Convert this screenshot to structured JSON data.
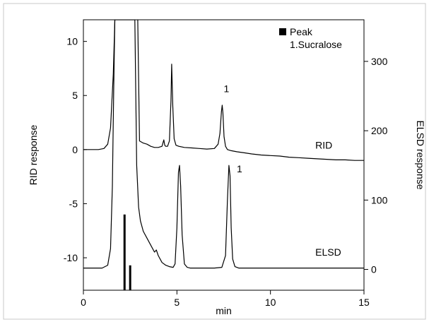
{
  "chart_data": {
    "type": "line",
    "xlabel": "min",
    "ylabel_left": "RID response",
    "ylabel_right": "ELSD response",
    "xlim": [
      0,
      15
    ],
    "ylim_left": [
      -13,
      12
    ],
    "ylim_right": [
      -30,
      360
    ],
    "xticks": [
      0,
      5,
      10,
      15
    ],
    "yticks_left": [
      10,
      5,
      0,
      -5,
      -10
    ],
    "yticks_right": [
      300,
      200,
      100,
      0
    ],
    "grid": false,
    "legend": {
      "marker": "square",
      "title": "Peak",
      "entries": [
        "1.Sucralose"
      ],
      "placement": "top-right"
    },
    "series": [
      {
        "name": "RID",
        "axis": "left",
        "x": [
          0,
          0.8,
          1.1,
          1.3,
          1.45,
          1.6,
          1.68,
          1.76,
          1.85,
          1.95,
          2.05,
          2.1,
          2.15,
          2.22,
          2.28,
          2.35,
          2.42,
          2.5,
          2.58,
          2.63,
          2.66,
          2.68,
          2.72,
          2.76,
          2.82,
          2.9,
          3.0,
          3.2,
          3.4,
          3.6,
          3.8,
          4.0,
          4.2,
          4.3,
          4.35,
          4.4,
          4.5,
          4.6,
          4.68,
          4.72,
          4.78,
          4.85,
          4.95,
          5.1,
          5.4,
          5.8,
          6.2,
          6.6,
          7.0,
          7.2,
          7.3,
          7.38,
          7.42,
          7.46,
          7.52,
          7.6,
          7.7,
          7.9,
          8.2,
          8.6,
          9.0,
          9.5,
          10.0,
          10.5,
          11.0,
          11.5,
          12.0,
          12.5,
          13.0,
          13.5,
          14.0,
          14.5,
          15.0
        ],
        "y": [
          0,
          0,
          0.1,
          0.5,
          2.0,
          7.0,
          12.0,
          12.5,
          12.5,
          12.5,
          12.5,
          12.5,
          12.5,
          12.5,
          12.5,
          12.5,
          12.5,
          12.5,
          12.5,
          12.5,
          12.5,
          12.5,
          12.5,
          12.5,
          12.5,
          12.5,
          0.8,
          0.6,
          0.5,
          0.3,
          0.2,
          0.2,
          0.3,
          0.9,
          0.4,
          0.3,
          0.3,
          0.8,
          4.5,
          7.9,
          4.0,
          1.0,
          0.4,
          0.3,
          0.2,
          0.15,
          0.1,
          0.05,
          0.1,
          0.5,
          1.5,
          3.5,
          4.1,
          3.4,
          1.2,
          0.3,
          0.0,
          -0.1,
          -0.2,
          -0.3,
          -0.4,
          -0.5,
          -0.55,
          -0.6,
          -0.7,
          -0.75,
          -0.8,
          -0.85,
          -0.9,
          -0.95,
          -0.95,
          -1.0,
          -1.0
        ]
      },
      {
        "name": "ELSD",
        "axis": "right",
        "x": [
          0,
          1.0,
          1.3,
          1.45,
          1.55,
          1.62,
          1.68,
          1.75,
          1.85,
          2.0,
          2.2,
          2.4,
          2.6,
          2.75,
          2.85,
          2.95,
          3.05,
          3.2,
          3.4,
          3.6,
          3.8,
          3.9,
          4.0,
          4.2,
          4.4,
          4.6,
          4.8,
          4.9,
          5.0,
          5.08,
          5.14,
          5.2,
          5.28,
          5.4,
          5.55,
          5.7,
          6.0,
          6.5,
          7.0,
          7.4,
          7.6,
          7.7,
          7.78,
          7.84,
          7.9,
          7.98,
          8.1,
          8.3,
          8.5,
          9.0,
          10.0,
          11.0,
          12.0,
          13.0,
          14.0,
          15.0
        ],
        "y": [
          2,
          2,
          6,
          30,
          120,
          260,
          360,
          360,
          360,
          360,
          360,
          360,
          360,
          360,
          150,
          90,
          70,
          55,
          45,
          35,
          25,
          28,
          20,
          10,
          6,
          4,
          3,
          8,
          60,
          140,
          150,
          120,
          50,
          8,
          3,
          2,
          2,
          2,
          2,
          3,
          20,
          100,
          150,
          135,
          60,
          15,
          4,
          2,
          2,
          2,
          2,
          2,
          2,
          2,
          2,
          2
        ]
      }
    ],
    "annotations": [
      {
        "text": "1",
        "series": "RID",
        "x": 7.5,
        "y": 5.3
      },
      {
        "text": "1",
        "series": "ELSD",
        "x": 8.2,
        "y": 140
      },
      {
        "text": "RID",
        "x": 12.4,
        "y": 0.1
      },
      {
        "text": "ELSD",
        "x": 12.4,
        "y": 20
      }
    ],
    "peak_markers": [
      {
        "x": 2.2,
        "y": -6
      },
      {
        "x": 2.5,
        "y": -10.7
      }
    ],
    "colors": {
      "line": "#000000",
      "frame": "#000000",
      "background": "#ffffff"
    }
  }
}
